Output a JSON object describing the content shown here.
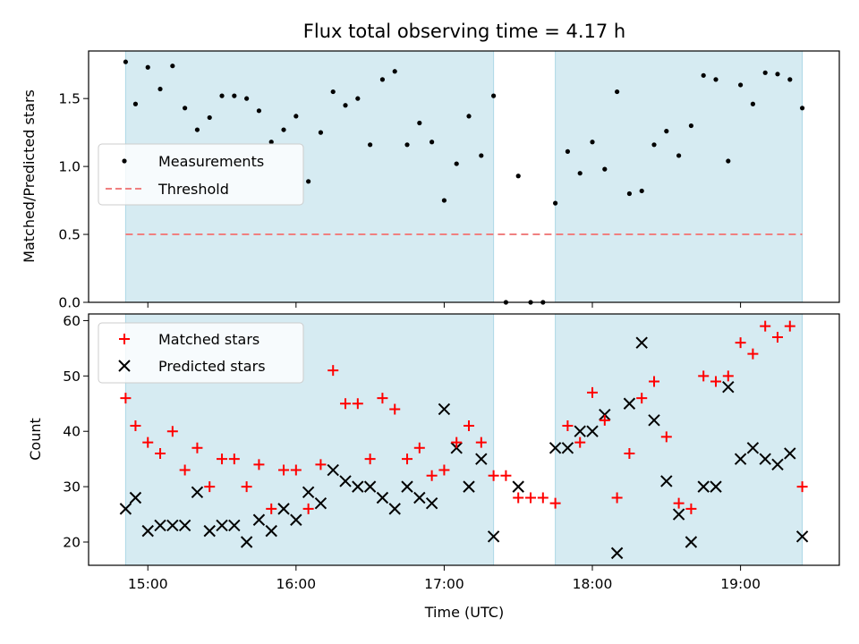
{
  "chart_data": [
    {
      "type": "scatter",
      "title": "Flux total observing time = 4.17 h",
      "ylabel": "Matched/Predicted stars",
      "xlim": [
        "14:36",
        "19:40"
      ],
      "ylim": [
        0,
        1.85
      ],
      "yticks": [
        0.0,
        0.5,
        1.0,
        1.5
      ],
      "ytick_labels": [
        "0.0",
        "0.5",
        "1.0",
        "1.5"
      ],
      "threshold": 0.5,
      "threshold_color": "#f08080",
      "shaded_color": "#add8e6",
      "shaded_intervals": [
        [
          "14:51",
          "17:20"
        ],
        [
          "17:45",
          "19:25"
        ]
      ],
      "legend": {
        "position": "middle-left",
        "entries": [
          "Measurements",
          "Threshold"
        ]
      },
      "series": [
        {
          "name": "Measurements",
          "x": [
            "14:51",
            "14:55",
            "15:00",
            "15:05",
            "15:10",
            "15:15",
            "15:20",
            "15:25",
            "15:30",
            "15:35",
            "15:40",
            "15:45",
            "15:50",
            "15:55",
            "16:00",
            "16:05",
            "16:10",
            "16:15",
            "16:20",
            "16:25",
            "16:30",
            "16:35",
            "16:40",
            "16:45",
            "16:50",
            "16:55",
            "17:00",
            "17:05",
            "17:10",
            "17:15",
            "17:20",
            "17:25",
            "17:30",
            "17:35",
            "17:40",
            "17:45",
            "17:50",
            "17:55",
            "18:00",
            "18:05",
            "18:10",
            "18:15",
            "18:20",
            "18:25",
            "18:30",
            "18:35",
            "18:40",
            "18:45",
            "18:50",
            "18:55",
            "19:00",
            "19:05",
            "19:10",
            "19:15",
            "19:20",
            "19:25"
          ],
          "y": [
            1.77,
            1.46,
            1.73,
            1.57,
            1.74,
            1.43,
            1.27,
            1.36,
            1.52,
            1.52,
            1.5,
            1.41,
            1.18,
            1.27,
            1.37,
            0.89,
            1.25,
            1.55,
            1.45,
            1.5,
            1.16,
            1.64,
            1.7,
            1.16,
            1.32,
            1.18,
            0.75,
            1.02,
            1.37,
            1.08,
            1.52,
            0.0,
            0.93,
            0.0,
            0.0,
            0.73,
            1.11,
            0.95,
            1.18,
            0.98,
            1.55,
            0.8,
            0.82,
            1.16,
            1.26,
            1.08,
            1.3,
            1.67,
            1.64,
            1.04,
            1.6,
            1.46,
            1.69,
            1.68,
            1.64,
            1.43
          ],
          "color": "#000000"
        }
      ]
    },
    {
      "type": "scatter",
      "xlabel": "Time (UTC)",
      "ylabel": "Count",
      "xlim": [
        "14:36",
        "19:40"
      ],
      "xticks": [
        "15:00",
        "16:00",
        "17:00",
        "18:00",
        "19:00"
      ],
      "ylim": [
        15.8,
        61.2
      ],
      "yticks": [
        20,
        30,
        40,
        50,
        60
      ],
      "shaded_color": "#add8e6",
      "shaded_intervals": [
        [
          "14:51",
          "17:20"
        ],
        [
          "17:45",
          "19:25"
        ]
      ],
      "legend": {
        "position": "top-left",
        "entries": [
          "Matched stars",
          "Predicted stars"
        ]
      },
      "x": [
        "14:51",
        "14:55",
        "15:00",
        "15:05",
        "15:10",
        "15:15",
        "15:20",
        "15:25",
        "15:30",
        "15:35",
        "15:40",
        "15:45",
        "15:50",
        "15:55",
        "16:00",
        "16:05",
        "16:10",
        "16:15",
        "16:20",
        "16:25",
        "16:30",
        "16:35",
        "16:40",
        "16:45",
        "16:50",
        "16:55",
        "17:00",
        "17:05",
        "17:10",
        "17:15",
        "17:20",
        "17:25",
        "17:30",
        "17:35",
        "17:40",
        "17:45",
        "17:50",
        "17:55",
        "18:00",
        "18:05",
        "18:10",
        "18:15",
        "18:20",
        "18:25",
        "18:30",
        "18:35",
        "18:40",
        "18:45",
        "18:50",
        "18:55",
        "19:00",
        "19:05",
        "19:10",
        "19:15",
        "19:20",
        "19:25"
      ],
      "series": [
        {
          "name": "Matched stars",
          "marker": "+",
          "color": "#ff0000",
          "values": [
            46,
            41,
            38,
            36,
            40,
            33,
            37,
            30,
            35,
            35,
            30,
            34,
            26,
            33,
            33,
            26,
            34,
            51,
            45,
            45,
            35,
            46,
            44,
            35,
            37,
            32,
            33,
            38,
            41,
            38,
            32,
            32,
            28,
            28,
            28,
            27,
            41,
            38,
            47,
            42,
            28,
            36,
            46,
            49,
            39,
            27,
            26,
            50,
            49,
            50,
            56,
            54,
            59,
            57,
            59,
            30
          ]
        },
        {
          "name": "Predicted stars",
          "marker": "x",
          "color": "#000000",
          "values": [
            26,
            28,
            22,
            23,
            23,
            23,
            29,
            22,
            23,
            23,
            20,
            24,
            22,
            26,
            24,
            29,
            27,
            33,
            31,
            30,
            30,
            28,
            26,
            30,
            28,
            27,
            44,
            37,
            30,
            35,
            21,
            null,
            30,
            null,
            null,
            37,
            37,
            40,
            40,
            43,
            18,
            45,
            56,
            42,
            31,
            25,
            20,
            30,
            30,
            48,
            35,
            37,
            35,
            34,
            36,
            21
          ]
        }
      ]
    }
  ]
}
